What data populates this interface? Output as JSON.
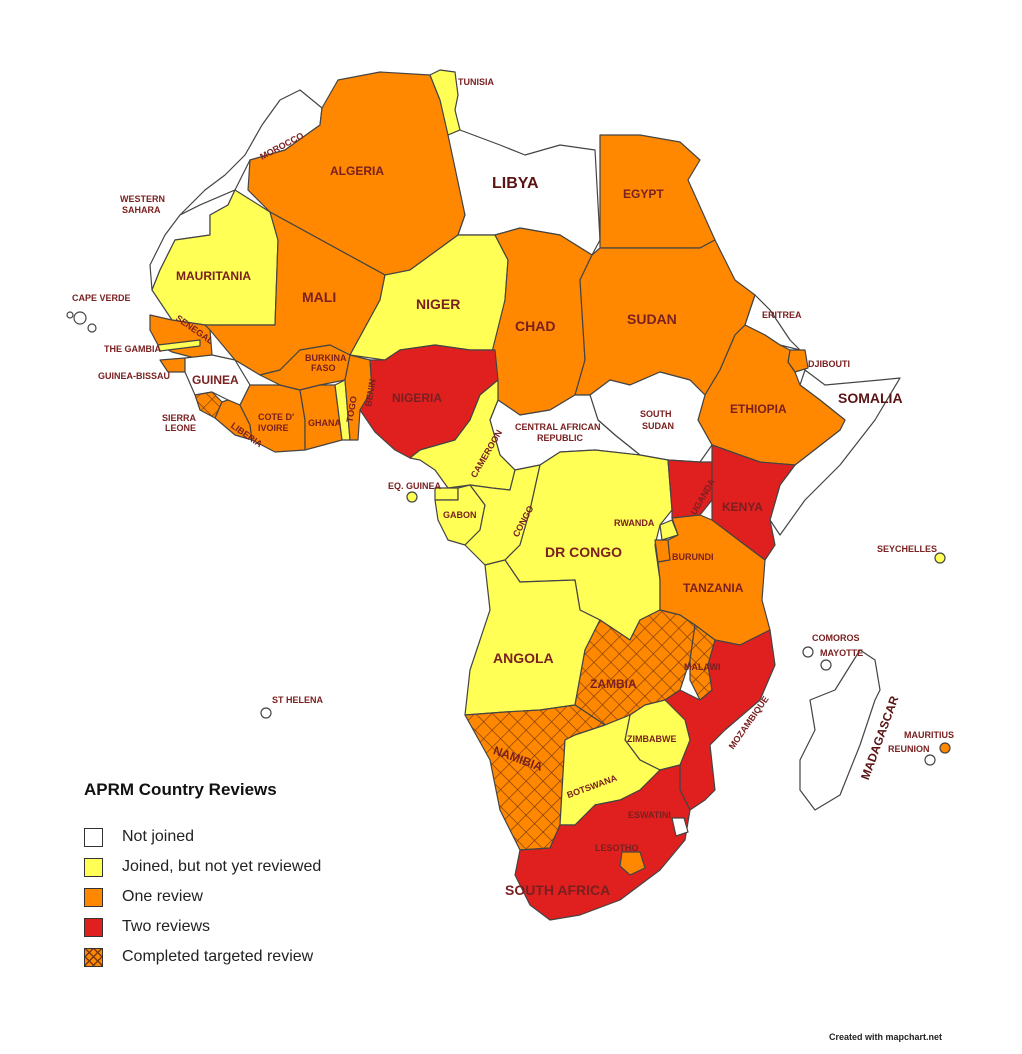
{
  "legend": {
    "title": "APRM Country Reviews",
    "items": [
      {
        "key": "not_joined",
        "label": "Not joined",
        "color": "#ffffff"
      },
      {
        "key": "joined",
        "label": "Joined, but not yet reviewed",
        "color": "#ffff55"
      },
      {
        "key": "one",
        "label": "One review",
        "color": "#ff8800"
      },
      {
        "key": "two",
        "label": "Two reviews",
        "color": "#e01f1f"
      },
      {
        "key": "targeted",
        "label": "Completed targeted review",
        "color": "#ff8800",
        "pattern": "crosshatch"
      }
    ]
  },
  "credit": "Created with mapchart.net",
  "countries": {
    "morocco": "MOROCCO",
    "western_sahara": [
      "WESTERN",
      "SAHARA"
    ],
    "algeria": "ALGERIA",
    "tunisia": "TUNISIA",
    "libya": "LIBYA",
    "egypt": "EGYPT",
    "mauritania": "MAURITANIA",
    "mali": "MALI",
    "niger": "NIGER",
    "chad": "CHAD",
    "sudan": "SUDAN",
    "eritrea": "ERITREA",
    "djibouti": "DJIBOUTI",
    "somalia": "SOMALIA",
    "ethiopia": "ETHIOPIA",
    "south_sudan": [
      "SOUTH",
      "SUDAN"
    ],
    "car": [
      "CENTRAL AFRICAN",
      "REPUBLIC"
    ],
    "nigeria": "NIGERIA",
    "senegal": "SENEGAL",
    "the_gambia": "THE GAMBIA",
    "guinea_bissau": "GUINEA-BISSAU",
    "guinea": "GUINEA",
    "sierra_leone": [
      "SIERRA",
      "LEONE"
    ],
    "liberia": "LIBERIA",
    "cote_divoire": [
      "COTE D'",
      "IVOIRE"
    ],
    "ghana": "GHANA",
    "burkina_faso": [
      "BURKINA",
      "FASO"
    ],
    "togo": "TOGO",
    "benin": "BENIN",
    "cameroon": "CAMEROON",
    "eq_guinea": "EQ. GUINEA",
    "gabon": "GABON",
    "congo": "CONGO",
    "dr_congo": "DR CONGO",
    "uganda": "UGANDA",
    "kenya": "KENYA",
    "rwanda": "RWANDA",
    "burundi": "BURUNDI",
    "tanzania": "TANZANIA",
    "angola": "ANGOLA",
    "zambia": "ZAMBIA",
    "malawi": "MALAWI",
    "mozambique": "MOZAMBIQUE",
    "zimbabwe": "ZIMBABWE",
    "namibia": "NAMIBIA",
    "botswana": "BOTSWANA",
    "eswatini": "ESWATINI",
    "lesotho": "LESOTHO",
    "south_africa": "SOUTH AFRICA",
    "madagascar": "MADAGASCAR",
    "cape_verde": "CAPE VERDE",
    "seychelles": "SEYCHELLES",
    "comoros": "COMOROS",
    "mayotte": "MAYOTTE",
    "st_helena": "ST HELENA",
    "mauritius": "MAURITIUS",
    "reunion": "REUNION"
  }
}
